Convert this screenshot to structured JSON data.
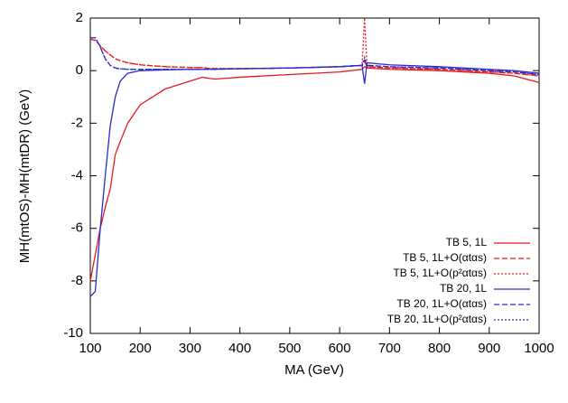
{
  "chart_data": {
    "type": "line",
    "x_label": "MA (GeV)",
    "y_label": "MH(mtOS)-MH(mtDR) (GeV)",
    "x": [
      100,
      110,
      120,
      130,
      140,
      150,
      160,
      175,
      200,
      250,
      300,
      325,
      340,
      350,
      400,
      500,
      600,
      645,
      650,
      655,
      700,
      800,
      900,
      950,
      1000
    ],
    "series": [
      {
        "name": "TB 5, 1L",
        "color": "#e41a1c",
        "dash": "solid",
        "values": [
          -8,
          -7,
          -6,
          -5.2,
          -4.5,
          -3.2,
          -2.7,
          -2.0,
          -1.3,
          -0.7,
          -0.4,
          -0.25,
          -0.3,
          -0.32,
          -0.25,
          -0.15,
          -0.05,
          0.05,
          0.15,
          0.1,
          0.05,
          0,
          -0.1,
          -0.2,
          -0.45
        ]
      },
      {
        "name": "TB 5, 1L+O(αtαs)",
        "color": "#e41a1c",
        "dash": "dashed",
        "values": [
          1.2,
          1.15,
          0.95,
          0.75,
          0.6,
          0.45,
          0.38,
          0.3,
          0.22,
          0.15,
          0.12,
          0.12,
          0.08,
          0.08,
          0.08,
          0.1,
          0.15,
          0.2,
          0.35,
          0.15,
          0.1,
          0.05,
          -0.05,
          -0.1,
          -0.2
        ]
      },
      {
        "name": "TB 5, 1L+O(p²αtαs)",
        "color": "#e41a1c",
        "dash": "dotted",
        "values": [
          1.2,
          1.15,
          0.95,
          0.75,
          0.6,
          0.45,
          0.38,
          0.3,
          0.22,
          0.15,
          0.12,
          0.12,
          0.08,
          0.08,
          0.08,
          0.1,
          0.15,
          0.2,
          2,
          0.15,
          0.1,
          0.05,
          -0.05,
          -0.1,
          -0.2
        ]
      },
      {
        "name": "TB 20, 1L",
        "color": "#2a2ac8",
        "dash": "solid",
        "values": [
          -8.6,
          -8.4,
          -6,
          -4,
          -2.1,
          -1.0,
          -0.4,
          -0.1,
          0,
          0.03,
          0.05,
          0.05,
          0.06,
          0.06,
          0.07,
          0.1,
          0.15,
          0.2,
          -0.5,
          0.3,
          0.22,
          0.15,
          0.05,
          0,
          -0.1
        ]
      },
      {
        "name": "TB 20, 1L+O(αtαs)",
        "color": "#2a2ac8",
        "dash": "dashed",
        "values": [
          1.25,
          1.25,
          0.9,
          0.45,
          0.2,
          0.1,
          0.07,
          0.05,
          0.05,
          0.05,
          0.05,
          0.05,
          0.05,
          0.05,
          0.07,
          0.1,
          0.15,
          0.2,
          0.4,
          0.2,
          0.15,
          0.1,
          0,
          -0.05,
          -0.15
        ]
      },
      {
        "name": "TB 20, 1L+O(p²αtαs)",
        "color": "#2a2ac8",
        "dash": "dotted",
        "values": [
          1.25,
          1.25,
          0.9,
          0.45,
          0.2,
          0.1,
          0.07,
          0.05,
          0.05,
          0.05,
          0.05,
          0.05,
          0.05,
          0.05,
          0.07,
          0.1,
          0.15,
          0.2,
          0.5,
          0.2,
          0.15,
          0.1,
          0,
          -0.05,
          -0.15
        ]
      }
    ],
    "xlim": [
      100,
      1000
    ],
    "xticks": [
      100,
      200,
      300,
      400,
      500,
      600,
      700,
      800,
      900,
      1000
    ],
    "ylim": [
      -10,
      2
    ],
    "yticks": [
      -10,
      -8,
      -6,
      -4,
      -2,
      0,
      2
    ],
    "grid": false,
    "legend": "bottom-right"
  }
}
